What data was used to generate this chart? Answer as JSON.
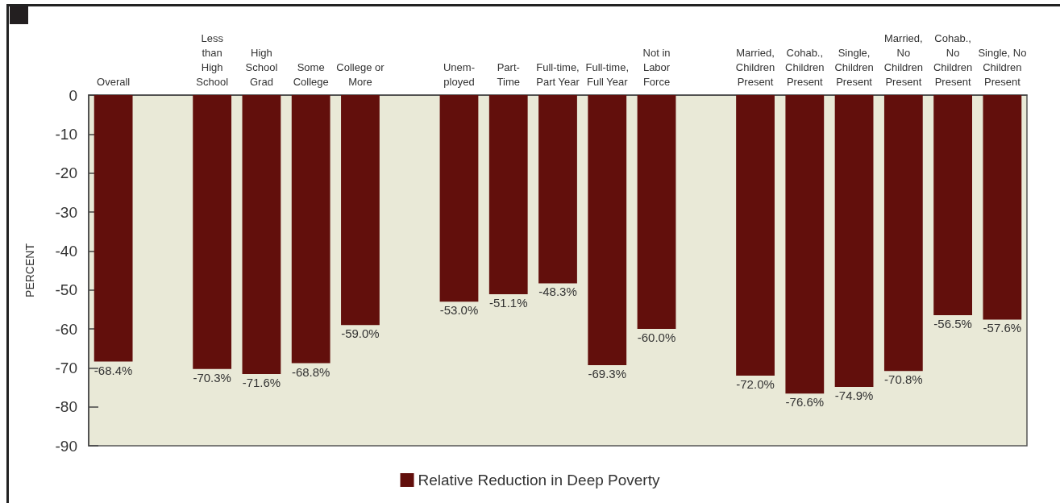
{
  "chart_data": {
    "type": "bar",
    "ylabel": "PERCENT",
    "categories": [
      "Overall",
      null,
      "Less\nthan\nHigh\nSchool",
      "High\nSchool\nGrad",
      "Some\nCollege",
      "College or\nMore",
      null,
      "Unem-\nployed",
      "Part-\nTime",
      "Full-time,\nPart Year",
      "Full-time,\nFull Year",
      "Not in\nLabor\nForce",
      null,
      "Married,\nChildren\nPresent",
      "Cohab.,\nChildren\nPresent",
      "Single,\nChildren\nPresent",
      "Married,\nNo\nChildren\nPresent",
      "Cohab.,\nNo\nChildren\nPresent",
      "Single, No\nChildren\nPresent"
    ],
    "series": [
      {
        "name": "Relative Reduction in Deep Poverty",
        "color": "#620f0c",
        "values": [
          -68.4,
          null,
          -70.3,
          -71.6,
          -68.8,
          -59.0,
          null,
          -53.0,
          -51.1,
          -48.3,
          -69.3,
          -60.0,
          null,
          -72.0,
          -76.6,
          -74.9,
          -70.8,
          -56.5,
          -57.6
        ],
        "value_labels": [
          "-68.4%",
          null,
          "-70.3%",
          "-71.6%",
          "-68.8%",
          "-59.0%",
          null,
          "-53.0%",
          "-51.1%",
          "-48.3%",
          "-69.3%",
          "-60.0%",
          null,
          "-72.0%",
          "-76.6%",
          "-74.9%",
          "-70.8%",
          "-56.5%",
          "-57.6%"
        ]
      }
    ],
    "ylim": [
      -90,
      0
    ],
    "yticks": [
      0,
      -10,
      -20,
      -30,
      -40,
      -50,
      -60,
      -70,
      -80,
      -90
    ],
    "legend": "bottom"
  }
}
